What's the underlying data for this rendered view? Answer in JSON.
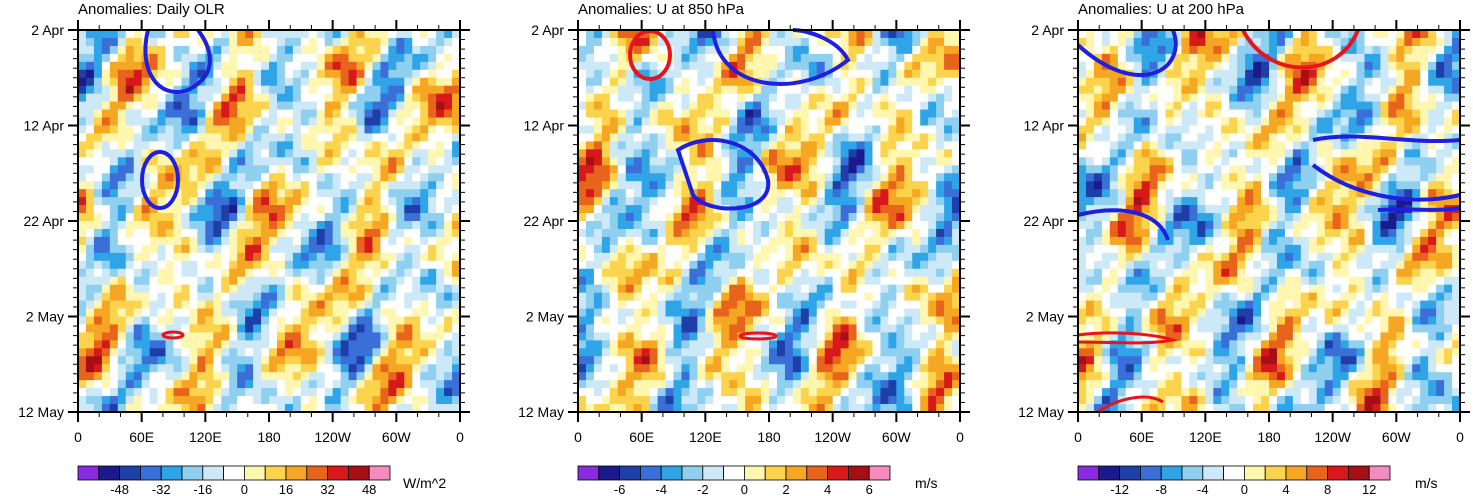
{
  "figure": {
    "type": "hovmoller-panels"
  },
  "chart_data": [
    {
      "type": "heatmap",
      "title": "Anomalies: Daily OLR",
      "units": "W/m^2",
      "y_ticks": [
        "2 Apr",
        "12 Apr",
        "22 Apr",
        "2 May",
        "12 May"
      ],
      "x_ticks": [
        "0",
        "60E",
        "120E",
        "180",
        "120W",
        "60W",
        "0"
      ],
      "colorbar_levels": [
        -56,
        -48,
        -40,
        -32,
        -24,
        -16,
        -8,
        0,
        8,
        16,
        24,
        32,
        40,
        48,
        56
      ],
      "colorbar_labels": [
        "-48",
        "-32",
        "-16",
        "0",
        "16",
        "32",
        "48"
      ]
    },
    {
      "type": "heatmap",
      "title": "Anomalies: U at 850 hPa",
      "units": "m/s",
      "y_ticks": [
        "2 Apr",
        "12 Apr",
        "22 Apr",
        "2 May",
        "12 May"
      ],
      "x_ticks": [
        "0",
        "60E",
        "120E",
        "180",
        "120W",
        "60W",
        "0"
      ],
      "colorbar_levels": [
        -7,
        -6,
        -5,
        -4,
        -3,
        -2,
        -1,
        0,
        1,
        2,
        3,
        4,
        5,
        6,
        7
      ],
      "colorbar_labels": [
        "-6",
        "-4",
        "-2",
        "0",
        "2",
        "4",
        "6"
      ]
    },
    {
      "type": "heatmap",
      "title": "Anomalies: U at 200 hPa",
      "units": "m/s",
      "y_ticks": [
        "2 Apr",
        "12 Apr",
        "22 Apr",
        "2 May",
        "12 May"
      ],
      "x_ticks": [
        "0",
        "60E",
        "120E",
        "180",
        "120W",
        "60W",
        "0"
      ],
      "colorbar_levels": [
        -14,
        -12,
        -10,
        -8,
        -6,
        -4,
        -2,
        0,
        2,
        4,
        6,
        8,
        10,
        12,
        14
      ],
      "colorbar_labels": [
        "-12",
        "-8",
        "-4",
        "0",
        "4",
        "8",
        "12"
      ]
    }
  ],
  "palette": [
    "#8a2be2",
    "#1a1a8c",
    "#1e3fa8",
    "#3a6fd8",
    "#2fa5e8",
    "#8fd0f0",
    "#cde9f7",
    "#ffffff",
    "#fff6b0",
    "#fcd34d",
    "#f5a623",
    "#e8641c",
    "#d7191c",
    "#a50f15",
    "#f38bbf"
  ]
}
